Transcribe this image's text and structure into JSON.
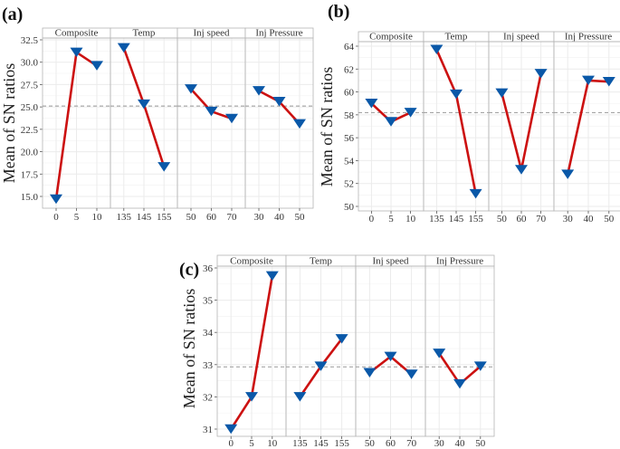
{
  "chart_data": [
    {
      "type": "line",
      "panel_label": "(a)",
      "title": "",
      "ylabel": "Mean of SN ratios",
      "ylim": [
        14,
        33.4
      ],
      "yticks": [
        "15.0",
        "17.5",
        "20.0",
        "22.5",
        "25.0",
        "27.5",
        "30.0",
        "32.5"
      ],
      "ytick_values": [
        15.0,
        17.5,
        20.0,
        22.5,
        25.0,
        27.5,
        30.0,
        32.5
      ],
      "mean_line": 25.1,
      "grid": true,
      "facets": [
        {
          "name": "Composite",
          "x": [
            "0",
            "5",
            "10"
          ],
          "values": [
            14.7,
            31.1,
            29.6
          ]
        },
        {
          "name": "Temp",
          "x": [
            "135",
            "145",
            "155"
          ],
          "values": [
            31.6,
            25.3,
            18.3
          ]
        },
        {
          "name": "Inj speed",
          "x": [
            "50",
            "60",
            "70"
          ],
          "values": [
            27.0,
            24.5,
            23.7
          ]
        },
        {
          "name": "Inj Pressure",
          "x": [
            "30",
            "40",
            "50"
          ],
          "values": [
            26.8,
            25.6,
            23.1
          ]
        }
      ]
    },
    {
      "type": "line",
      "panel_label": "(b)",
      "title": "",
      "ylabel": "Mean of SN ratios",
      "ylim": [
        49.6,
        64.5
      ],
      "yticks": [
        "50",
        "52",
        "54",
        "56",
        "58",
        "60",
        "62",
        "64"
      ],
      "ytick_values": [
        50,
        52,
        54,
        56,
        58,
        60,
        62,
        64
      ],
      "mean_line": 58.2,
      "grid": true,
      "facets": [
        {
          "name": "Composite",
          "x": [
            "0",
            "5",
            "10"
          ],
          "values": [
            59.0,
            57.4,
            58.2
          ]
        },
        {
          "name": "Temp",
          "x": [
            "135",
            "145",
            "155"
          ],
          "values": [
            63.7,
            59.8,
            51.1
          ]
        },
        {
          "name": "Inj speed",
          "x": [
            "50",
            "60",
            "70"
          ],
          "values": [
            59.9,
            53.2,
            61.6
          ]
        },
        {
          "name": "Inj Pressure",
          "x": [
            "30",
            "40",
            "50"
          ],
          "values": [
            52.8,
            61.0,
            60.9
          ]
        }
      ]
    },
    {
      "type": "line",
      "panel_label": "(c)",
      "title": "",
      "ylabel": "Mean of SN ratios",
      "ylim": [
        30.75,
        36.1
      ],
      "yticks": [
        "31",
        "32",
        "33",
        "34",
        "35",
        "36"
      ],
      "ytick_values": [
        31,
        32,
        33,
        34,
        35,
        36
      ],
      "mean_line": 32.93,
      "grid": true,
      "facets": [
        {
          "name": "Composite",
          "x": [
            "0",
            "5",
            "10"
          ],
          "values": [
            31.0,
            32.0,
            35.75
          ]
        },
        {
          "name": "Temp",
          "x": [
            "135",
            "145",
            "155"
          ],
          "values": [
            32.0,
            32.95,
            33.8
          ]
        },
        {
          "name": "Inj speed",
          "x": [
            "50",
            "60",
            "70"
          ],
          "values": [
            32.75,
            33.25,
            32.7
          ]
        },
        {
          "name": "Inj Pressure",
          "x": [
            "30",
            "40",
            "50"
          ],
          "values": [
            33.35,
            32.4,
            32.95
          ]
        }
      ]
    }
  ],
  "colors": {
    "line": "#cc1111",
    "marker": "#0a58a8",
    "mean_line": "#999999",
    "grid": "#ebebeb",
    "frame": "#b5b5b5",
    "strip_bg": "#ffffff"
  }
}
